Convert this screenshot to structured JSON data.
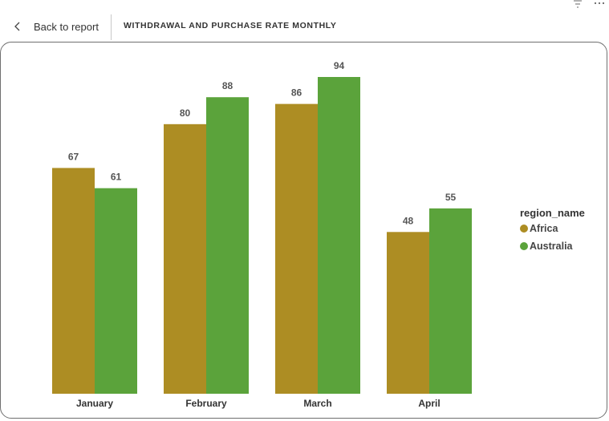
{
  "header": {
    "back_label": "Back to report",
    "title": "WITHDRAWAL AND PURCHASE RATE MONTHLY",
    "icons": [
      "chevron-left-icon",
      "filter-icon",
      "more-icon"
    ]
  },
  "legend": {
    "title": "region_name",
    "items": [
      {
        "label": "Africa",
        "color": "#ad8d23"
      },
      {
        "label": "Australia",
        "color": "#5ba33b"
      }
    ]
  },
  "chart_data": {
    "type": "bar",
    "categories": [
      "January",
      "February",
      "March",
      "April"
    ],
    "series": [
      {
        "name": "Africa",
        "values": [
          67,
          80,
          86,
          48
        ],
        "color": "#ad8d23"
      },
      {
        "name": "Australia",
        "values": [
          61,
          88,
          94,
          55
        ],
        "color": "#5ba33b"
      }
    ],
    "legend_title": "region_name",
    "legend_position": "right",
    "ylim": [
      0,
      94
    ],
    "grid": false,
    "data_labels": true
  }
}
